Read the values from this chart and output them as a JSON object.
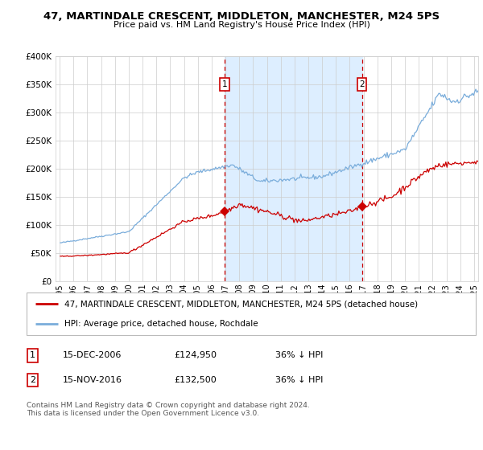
{
  "title": "47, MARTINDALE CRESCENT, MIDDLETON, MANCHESTER, M24 5PS",
  "subtitle": "Price paid vs. HM Land Registry's House Price Index (HPI)",
  "legend_line1": "47, MARTINDALE CRESCENT, MIDDLETON, MANCHESTER, M24 5PS (detached house)",
  "legend_line2": "HPI: Average price, detached house, Rochdale",
  "footnote": "Contains HM Land Registry data © Crown copyright and database right 2024.\nThis data is licensed under the Open Government Licence v3.0.",
  "sale1_date": "15-DEC-2006",
  "sale1_price": "£124,950",
  "sale1_hpi": "36% ↓ HPI",
  "sale2_date": "15-NOV-2016",
  "sale2_price": "£132,500",
  "sale2_hpi": "36% ↓ HPI",
  "sale1_x": 2006.96,
  "sale2_x": 2016.88,
  "sale1_y": 124950,
  "sale2_y": 132500,
  "red_color": "#cc0000",
  "blue_color": "#7aaddb",
  "shade_color": "#ddeeff",
  "ylim": [
    0,
    400000
  ],
  "xlim_start": 1994.7,
  "xlim_end": 2025.3,
  "yticks": [
    0,
    50000,
    100000,
    150000,
    200000,
    250000,
    300000,
    350000,
    400000
  ],
  "ytick_labels": [
    "£0",
    "£50K",
    "£100K",
    "£150K",
    "£200K",
    "£250K",
    "£300K",
    "£350K",
    "£400K"
  ],
  "xticks": [
    1995,
    1996,
    1997,
    1998,
    1999,
    2000,
    2001,
    2002,
    2003,
    2004,
    2005,
    2006,
    2007,
    2008,
    2009,
    2010,
    2011,
    2012,
    2013,
    2014,
    2015,
    2016,
    2017,
    2018,
    2019,
    2020,
    2021,
    2022,
    2023,
    2024,
    2025
  ]
}
